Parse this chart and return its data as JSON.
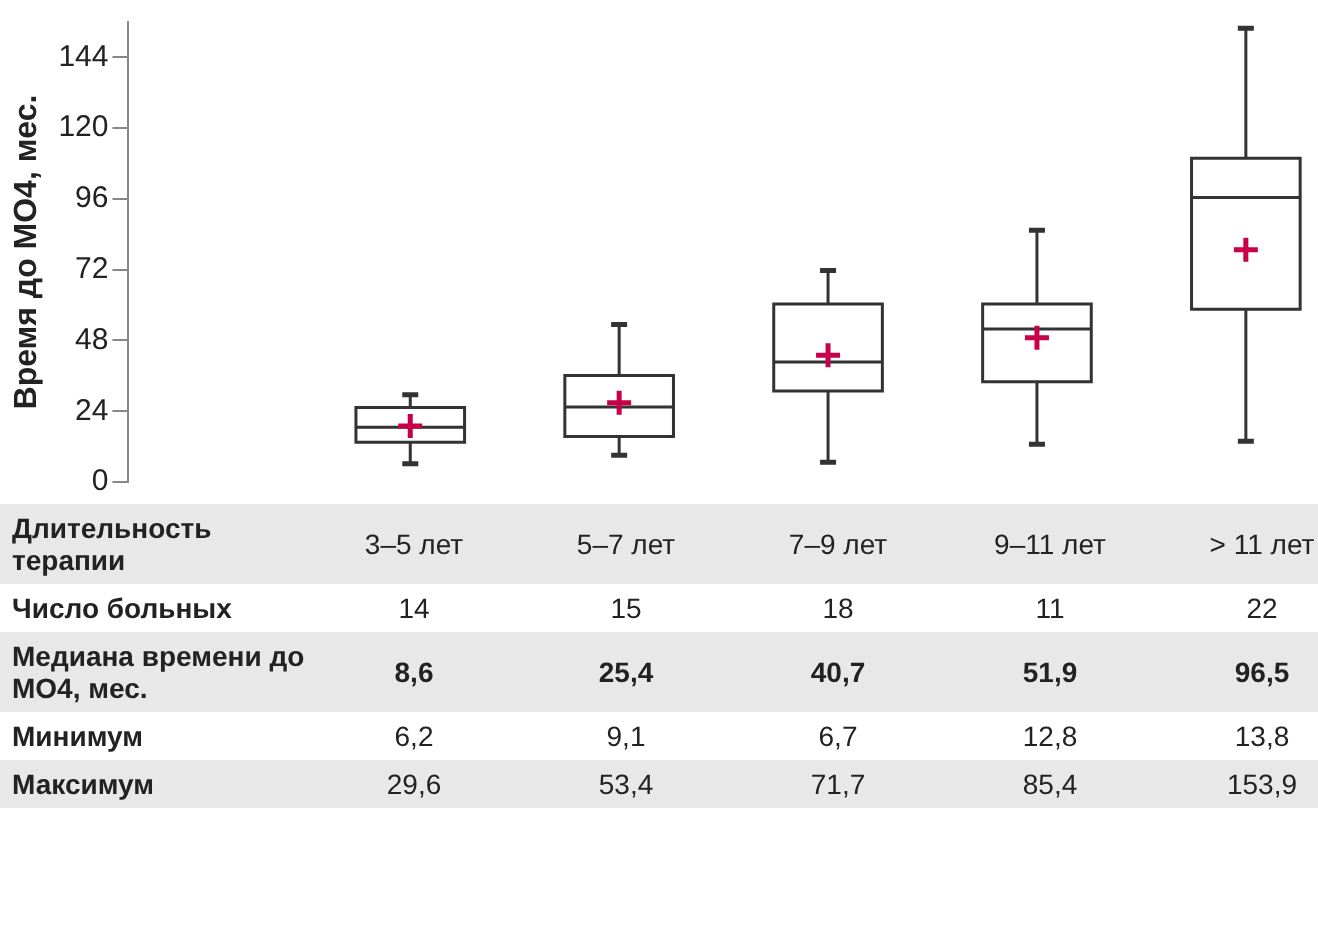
{
  "chart_data": {
    "type": "box",
    "ylabel": "Время до МО4, мес.",
    "xlabel": "Длительность терапии",
    "categories": [
      "3–5 лет",
      "5–7 лет",
      "7–9 лет",
      "9–11 лет",
      "> 11 лет"
    ],
    "series": [
      {
        "type": "box",
        "color": "#333333",
        "boxes": [
          {
            "low": 6.2,
            "q1": 13.5,
            "median": 18.6,
            "q3": 25.3,
            "high": 29.6
          },
          {
            "low": 9.1,
            "q1": 15.4,
            "median": 25.4,
            "q3": 36.1,
            "high": 53.4
          },
          {
            "low": 6.7,
            "q1": 30.9,
            "median": 40.7,
            "q3": 60.4,
            "high": 71.7
          },
          {
            "low": 12.8,
            "q1": 34,
            "median": 51.9,
            "q3": 60.4,
            "high": 85.4
          },
          {
            "low": 13.8,
            "q1": 58.6,
            "median": 96.5,
            "q3": 109.8,
            "high": 153.9
          }
        ]
      },
      {
        "type": "scatter",
        "color": "#c8004a",
        "marker": "cross",
        "x": [
          "3–5 лет",
          "5–7 лет",
          "7–9 лет",
          "9–11 лет",
          "> 11 лет"
        ],
        "values": [
          19,
          26.9,
          43,
          48.9,
          78.8
        ]
      }
    ],
    "ylim": [
      0,
      156
    ],
    "yticks": [
      0,
      24,
      48,
      72,
      96,
      120,
      144
    ],
    "legend": false,
    "annotations": [
      "Число больных",
      "14",
      "15",
      "18",
      "11",
      "22",
      "Медиана времени до МО4, мес.",
      "8,6",
      "25,4",
      "40,7",
      "51,9",
      "96,5",
      "Минимум",
      "6,2",
      "9,1",
      "6,7",
      "12,8",
      "13,8",
      "Максимум",
      "29,6",
      "53,4",
      "71,7",
      "85,4",
      "153,9"
    ]
  }
}
